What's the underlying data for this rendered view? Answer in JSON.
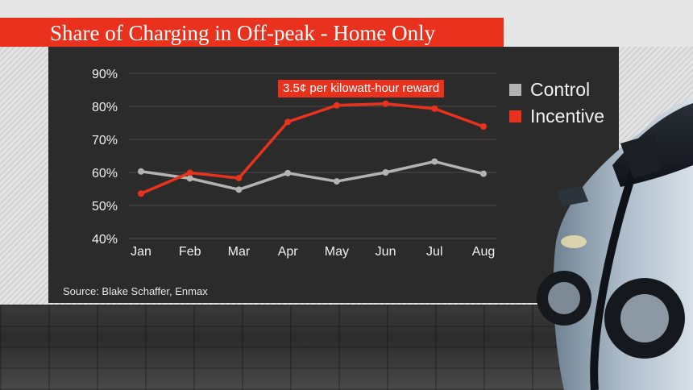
{
  "header": {
    "title": "Share of Charging in Off-peak - Home Only"
  },
  "source_text": "Source: Blake Schaffer, Enmax",
  "annotation_text": "3.5¢ per kilowatt-hour reward",
  "colors": {
    "control": "#b3b3b3",
    "incentive": "#e8321e",
    "panel": "#2b2b2b",
    "title_bar": "#e8321e"
  },
  "chart_data": {
    "type": "line",
    "title": "Share of Charging in Off-peak - Home Only",
    "xlabel": "",
    "ylabel": "",
    "categories": [
      "Jan",
      "Feb",
      "Mar",
      "Apr",
      "May",
      "Jun",
      "Jul",
      "Aug"
    ],
    "y_ticks": [
      "40%",
      "50%",
      "60%",
      "70%",
      "80%",
      "90%"
    ],
    "ylim": [
      40,
      90
    ],
    "grid": true,
    "legend_position": "right",
    "series": [
      {
        "name": "Control",
        "values": [
          60.3,
          58.2,
          54.8,
          59.8,
          57.3,
          60.0,
          63.3,
          59.6
        ]
      },
      {
        "name": "Incentive",
        "values": [
          53.6,
          59.9,
          58.3,
          75.3,
          80.3,
          80.8,
          79.3,
          73.9
        ]
      }
    ],
    "annotations": [
      "3.5¢ per kilowatt-hour reward"
    ]
  }
}
